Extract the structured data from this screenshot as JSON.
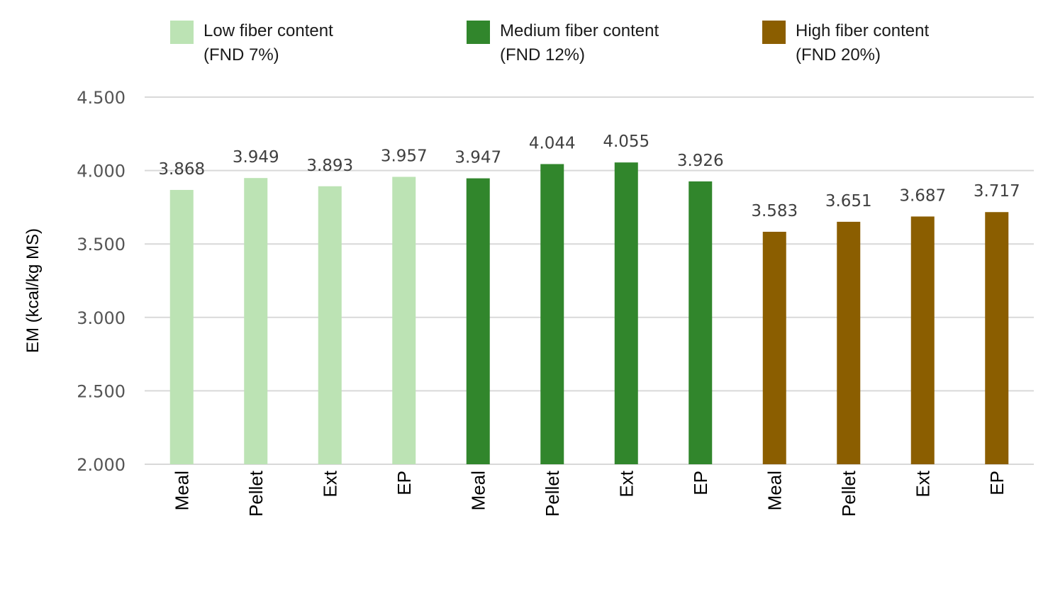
{
  "chart_data": {
    "type": "bar",
    "ylabel": "EM (kcal/kg MS)",
    "ylim": [
      2000,
      4500
    ],
    "yticks": [
      {
        "value": 2000,
        "label": "2.000"
      },
      {
        "value": 2500,
        "label": "2.500"
      },
      {
        "value": 3000,
        "label": "3.000"
      },
      {
        "value": 3500,
        "label": "3.500"
      },
      {
        "value": 4000,
        "label": "4.000"
      },
      {
        "value": 4500,
        "label": "4.500"
      }
    ],
    "grid": true,
    "legend_position": "top",
    "series": [
      {
        "name": "Low fiber content",
        "name_line2": "(FND 7%)",
        "color": "#bce3b4",
        "categories": [
          "Meal",
          "Pellet",
          "Ext",
          "EP"
        ],
        "values": [
          3868,
          3949,
          3893,
          3957
        ],
        "labels": [
          "3.868",
          "3.949",
          "3.893",
          "3.957"
        ]
      },
      {
        "name": "Medium fiber content",
        "name_line2": "(FND 12%)",
        "color": "#31862c",
        "categories": [
          "Meal",
          "Pellet",
          "Ext",
          "EP"
        ],
        "values": [
          3947,
          4044,
          4055,
          3926
        ],
        "labels": [
          "3.947",
          "4.044",
          "4.055",
          "3.926"
        ]
      },
      {
        "name": "High fiber content",
        "name_line2": "(FND 20%)",
        "color": "#8b5e00",
        "categories": [
          "Meal",
          "Pellet",
          "Ext",
          "EP"
        ],
        "values": [
          3583,
          3651,
          3687,
          3717
        ],
        "labels": [
          "3.583",
          "3.651",
          "3.687",
          "3.717"
        ]
      }
    ]
  }
}
